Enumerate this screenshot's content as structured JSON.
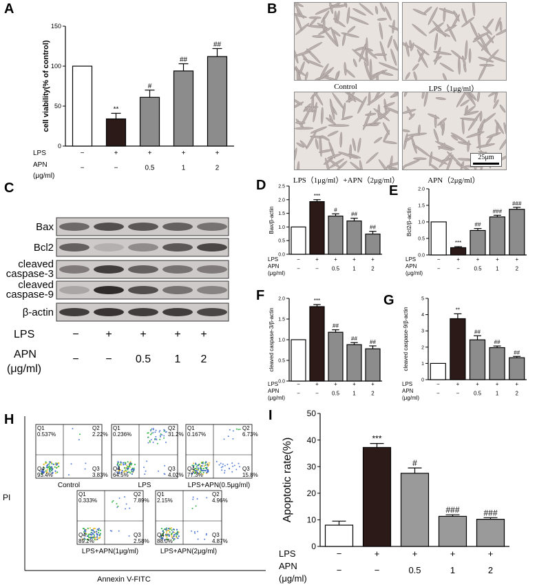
{
  "panels": {
    "A": "A",
    "B": "B",
    "C": "C",
    "D": "D",
    "E": "E",
    "F": "F",
    "G": "G",
    "H": "H",
    "I": "I"
  },
  "conditions": {
    "lps_label": "LPS",
    "apn_label": "APN",
    "apn_unit": "(μg/ml)",
    "lps": [
      "−",
      "+",
      "+",
      "+",
      "+"
    ],
    "apn": [
      "−",
      "−",
      "0.5",
      "1",
      "2"
    ]
  },
  "bar_colors": [
    "#ffffff",
    "#2b1a17",
    "#8c8c8c",
    "#8c8c8c",
    "#8c8c8c"
  ],
  "bar_colors_I": [
    "#ffffff",
    "#2b1a17",
    "#9a9a9a",
    "#9a9a9a",
    "#9a9a9a"
  ],
  "chart_data": [
    {
      "id": "A",
      "type": "bar",
      "ylabel": "cell viability(% of control)",
      "ylim": [
        0,
        150
      ],
      "yticks": [
        0,
        50,
        100,
        150
      ],
      "values": [
        100,
        34,
        61,
        94,
        112
      ],
      "errors": [
        0,
        7,
        9,
        9,
        10
      ],
      "annotations": [
        "",
        "**",
        "#",
        "##",
        "##"
      ]
    },
    {
      "id": "D",
      "type": "bar",
      "ylabel": "Bax/β-actin",
      "ylim": [
        0,
        2.5
      ],
      "yticks": [
        0,
        0.5,
        1.0,
        1.5,
        2.0,
        2.5
      ],
      "values": [
        1.0,
        1.93,
        1.4,
        1.22,
        0.74
      ],
      "errors": [
        0,
        0.07,
        0.08,
        0.1,
        0.1
      ],
      "annotations": [
        "",
        "***",
        "#",
        "##",
        "##"
      ]
    },
    {
      "id": "E",
      "type": "bar",
      "ylabel": "Bcl2/β-actin",
      "ylim": [
        0,
        2.0
      ],
      "yticks": [
        0,
        0.5,
        1.0,
        1.5,
        2.0
      ],
      "values": [
        1.0,
        0.22,
        0.74,
        1.15,
        1.38
      ],
      "errors": [
        0,
        0.03,
        0.06,
        0.05,
        0.06
      ],
      "annotations": [
        "",
        "***",
        "##",
        "###",
        "###"
      ]
    },
    {
      "id": "F",
      "type": "bar",
      "ylabel": "cleaved caspase-3/β-actin",
      "ylim": [
        0,
        2.0
      ],
      "yticks": [
        0,
        0.5,
        1.0,
        1.5,
        2.0
      ],
      "values": [
        1.0,
        1.8,
        1.18,
        0.88,
        0.78
      ],
      "errors": [
        0,
        0.05,
        0.06,
        0.05,
        0.07
      ],
      "annotations": [
        "",
        "***",
        "##",
        "##",
        "##"
      ]
    },
    {
      "id": "G",
      "type": "bar",
      "ylabel": "cleaved caspase-9/β-actin",
      "ylim": [
        0,
        5
      ],
      "yticks": [
        0,
        1,
        2,
        3,
        4,
        5
      ],
      "values": [
        1.0,
        3.75,
        2.45,
        1.97,
        1.35
      ],
      "errors": [
        0,
        0.3,
        0.25,
        0.1,
        0.08
      ],
      "annotations": [
        "",
        "**",
        "##",
        "##",
        "##"
      ]
    },
    {
      "id": "I",
      "type": "bar",
      "ylabel": "Apoptotic rate(%)",
      "ylim": [
        0,
        50
      ],
      "yticks": [
        0,
        10,
        20,
        30,
        40,
        50
      ],
      "values": [
        8,
        37.2,
        27.5,
        11.3,
        10.2
      ],
      "errors": [
        1.5,
        1.5,
        2,
        0.6,
        0.6
      ],
      "annotations": [
        "",
        "***",
        "#",
        "###",
        "###"
      ]
    }
  ],
  "micrographs": {
    "labels": [
      "Control",
      "LPS（1μg/ml）",
      "LPS（1μg/ml）+APN（2μg/ml）",
      "APN（2μg/ml）"
    ],
    "scale_bar": "25μm"
  },
  "western": {
    "bands": [
      "Bax",
      "Bcl2",
      "cleaved\ncaspase-3",
      "cleaved\ncaspase-9",
      "β-actin"
    ],
    "band_labels": [
      "Bax",
      "Bcl2",
      "cleaved caspase-3",
      "cleaved caspase-9",
      "β-actin"
    ]
  },
  "flow": {
    "ylabel": "PI",
    "xlabel": "Annexin V-FITC",
    "plots": [
      {
        "name": "Control",
        "q1": "Q1\n0.537%",
        "q2": "Q2\n2.22%",
        "q3": "Q3\n3.83%",
        "q4": "Q4\n93.4%"
      },
      {
        "name": "LPS",
        "q1": "Q1\n0.236%",
        "q2": "Q2\n31.2%",
        "q3": "Q3\n4.02%",
        "q4": "Q4\n64.5%"
      },
      {
        "name": "LPS+APN(0.5μg/ml)",
        "q1": "Q1\n0.167%",
        "q2": "Q2\n6.73%",
        "q3": "Q3\n15.8%",
        "q4": "Q4\n77.3%"
      },
      {
        "name": "LPS+APN(1μg/ml)",
        "q1": "Q1\n0.333%",
        "q2": "Q2\n7.89%",
        "q3": "Q3\n2.58%",
        "q4": "Q4\n89.2%"
      },
      {
        "name": "LPS+APN(2μg/ml)",
        "q1": "Q1\n2.15%",
        "q2": "Q2\n4.96%",
        "q3": "Q3\n4.87%",
        "q4": "Q4\n88.0%"
      }
    ]
  }
}
